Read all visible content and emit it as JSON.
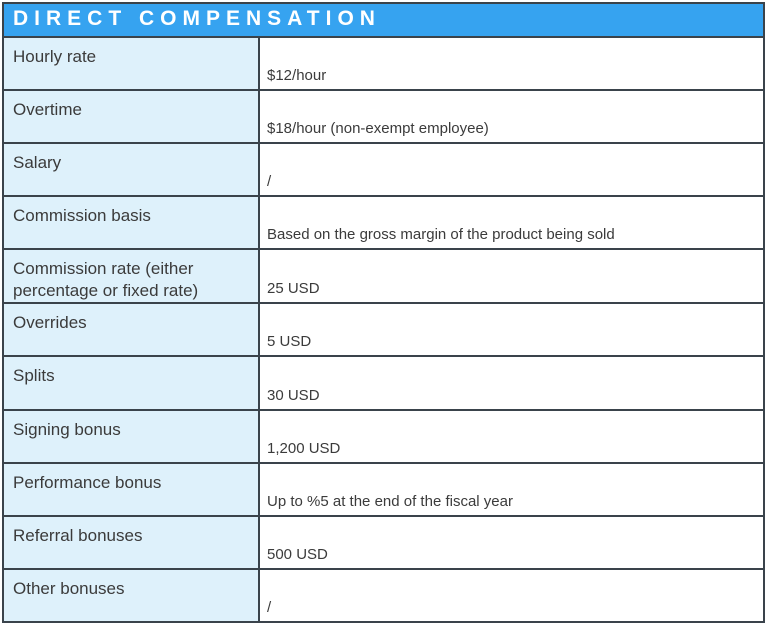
{
  "table": {
    "title": "DIRECT COMPENSATION",
    "rows": [
      {
        "label": "Hourly rate",
        "value": "$12/hour"
      },
      {
        "label": "Overtime",
        "value": "$18/hour (non-exempt employee)"
      },
      {
        "label": "Salary",
        "value": "/"
      },
      {
        "label": "Commission basis",
        "value": "Based on the gross margin of the product being sold"
      },
      {
        "label": "Commission rate (either percentage or fixed rate)",
        "value": "25 USD"
      },
      {
        "label": "Overrides",
        "value": "5 USD"
      },
      {
        "label": "Splits",
        "value": "30 USD"
      },
      {
        "label": "Signing bonus",
        "value": "1,200 USD"
      },
      {
        "label": "Performance bonus",
        "value": "Up to %5 at the end of the fiscal year"
      },
      {
        "label": "Referral bonuses",
        "value": "500 USD"
      },
      {
        "label": "Other bonuses",
        "value": "/"
      }
    ]
  },
  "colors": {
    "header_bg": "#36a3f0",
    "header_text": "#ffffff",
    "label_bg": "#def1fb",
    "value_bg": "#ffffff",
    "border": "#3a434b",
    "text": "#3b3b3b"
  }
}
